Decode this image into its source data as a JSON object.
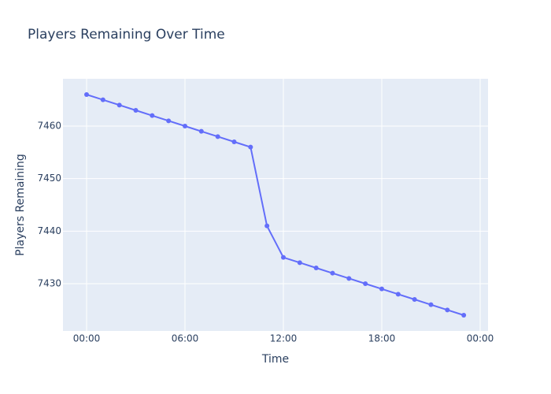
{
  "chart_data": {
    "type": "line",
    "title": "Players Remaining Over Time",
    "x_label": "Time",
    "y_label": "Players Remaining",
    "x": [
      0,
      1,
      2,
      3,
      4,
      5,
      6,
      7,
      8,
      9,
      10,
      11,
      12,
      13,
      14,
      15,
      16,
      17,
      18,
      19,
      20,
      21,
      22,
      23
    ],
    "series": [
      {
        "name": "Players Remaining",
        "color": "#636efa",
        "values": [
          7466,
          7465,
          7464,
          7463,
          7462,
          7461,
          7460,
          7459,
          7458,
          7457,
          7456,
          7441,
          7435,
          7434,
          7433,
          7432,
          7431,
          7430,
          7429,
          7428,
          7427,
          7426,
          7425,
          7424
        ]
      }
    ],
    "xlim": [
      -1.44,
      24.48
    ],
    "xticks": [
      {
        "value": 0,
        "label": "00:00"
      },
      {
        "value": 6,
        "label": "06:00"
      },
      {
        "value": 12,
        "label": "12:00"
      },
      {
        "value": 18,
        "label": "18:00"
      },
      {
        "value": 24,
        "label": "00:00"
      }
    ],
    "ylim": [
      7421,
      7469
    ],
    "yticks": [
      7430,
      7440,
      7450,
      7460
    ],
    "grid": true
  }
}
